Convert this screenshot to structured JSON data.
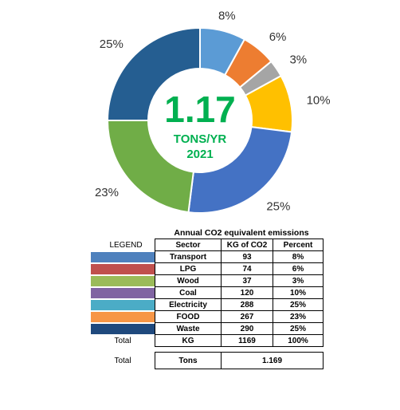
{
  "chart_data": {
    "type": "pie",
    "style": "donut",
    "center_value": "1.17",
    "center_unit": "TONS/YR",
    "center_year": "2021",
    "slices": [
      {
        "label": "8%",
        "value": 8,
        "color": "#5b9bd5"
      },
      {
        "label": "6%",
        "value": 6,
        "color": "#ed7d31"
      },
      {
        "label": "3%",
        "value": 3,
        "color": "#a5a5a5"
      },
      {
        "label": "10%",
        "value": 10,
        "color": "#ffc000"
      },
      {
        "label": "25%",
        "value": 25,
        "color": "#4472c4"
      },
      {
        "label": "23%",
        "value": 23,
        "color": "#70ad47"
      },
      {
        "label": "25%",
        "value": 25,
        "color": "#255e91"
      }
    ]
  },
  "table": {
    "title": "Annual CO2 equivalent emissions",
    "legend_header": "LEGEND",
    "headers": [
      "Sector",
      "KG of CO2",
      "Percent"
    ],
    "rows": [
      {
        "color": "#4f81bd",
        "sector": "Transport",
        "kg": "93",
        "percent": "8%"
      },
      {
        "color": "#c0504d",
        "sector": "LPG",
        "kg": "74",
        "percent": "6%"
      },
      {
        "color": "#9bbb59",
        "sector": "Wood",
        "kg": "37",
        "percent": "3%"
      },
      {
        "color": "#8064a2",
        "sector": "Coal",
        "kg": "120",
        "percent": "10%"
      },
      {
        "color": "#4bacc6",
        "sector": "Electricity",
        "kg": "288",
        "percent": "25%"
      },
      {
        "color": "#f79646",
        "sector": "FOOD",
        "kg": "267",
        "percent": "23%"
      },
      {
        "color": "#1f497d",
        "sector": "Waste",
        "kg": "290",
        "percent": "25%"
      }
    ],
    "total_kg": {
      "label": "Total",
      "unit": "KG",
      "kg": "1169",
      "percent": "100%"
    },
    "total_tons": {
      "label": "Total",
      "unit": "Tons",
      "value": "1.169"
    }
  }
}
